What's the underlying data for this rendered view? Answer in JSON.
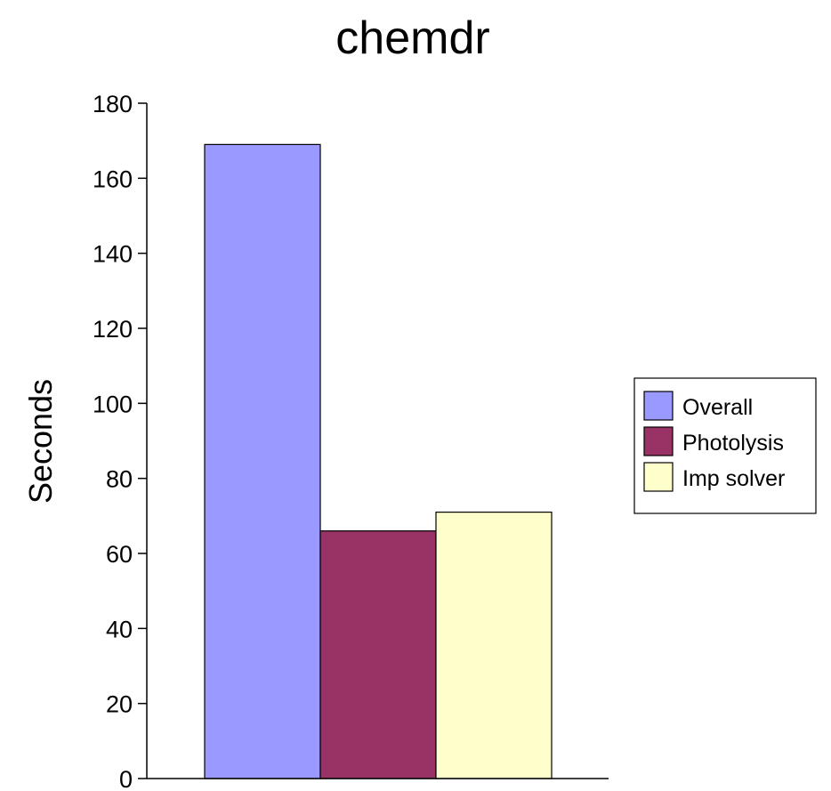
{
  "chart_data": {
    "type": "bar",
    "title": "chemdr",
    "xlabel": "",
    "ylabel": "Seconds",
    "ylim": [
      0,
      180
    ],
    "yticks": [
      0,
      20,
      40,
      60,
      80,
      100,
      120,
      140,
      160,
      180
    ],
    "grid": false,
    "legend_position": "right",
    "series": [
      {
        "name": "Overall",
        "value": 169,
        "color": "#9999ff"
      },
      {
        "name": "Photolysis",
        "value": 66,
        "color": "#993366"
      },
      {
        "name": "Imp solver",
        "value": 71,
        "color": "#ffffcc"
      }
    ]
  }
}
